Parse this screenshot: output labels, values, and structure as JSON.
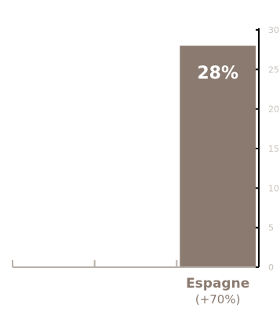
{
  "chart_data": {
    "type": "bar",
    "categories": [
      "",
      "",
      "Espagne"
    ],
    "category_sublabels": [
      "",
      "",
      "(+70%)"
    ],
    "values": [
      null,
      null,
      28
    ],
    "data_labels": [
      "",
      "",
      "28%"
    ],
    "ylim": [
      0,
      30
    ],
    "yticks": [
      "0",
      "5",
      "10",
      "15",
      "20",
      "25",
      "30"
    ],
    "grid": false,
    "colors": {
      "bar": "#8a7a70",
      "axis": "#b9b1aa",
      "tick_label": "#c8c2bc",
      "category_label": "#8a7a70",
      "data_label": "#ffffff"
    }
  }
}
